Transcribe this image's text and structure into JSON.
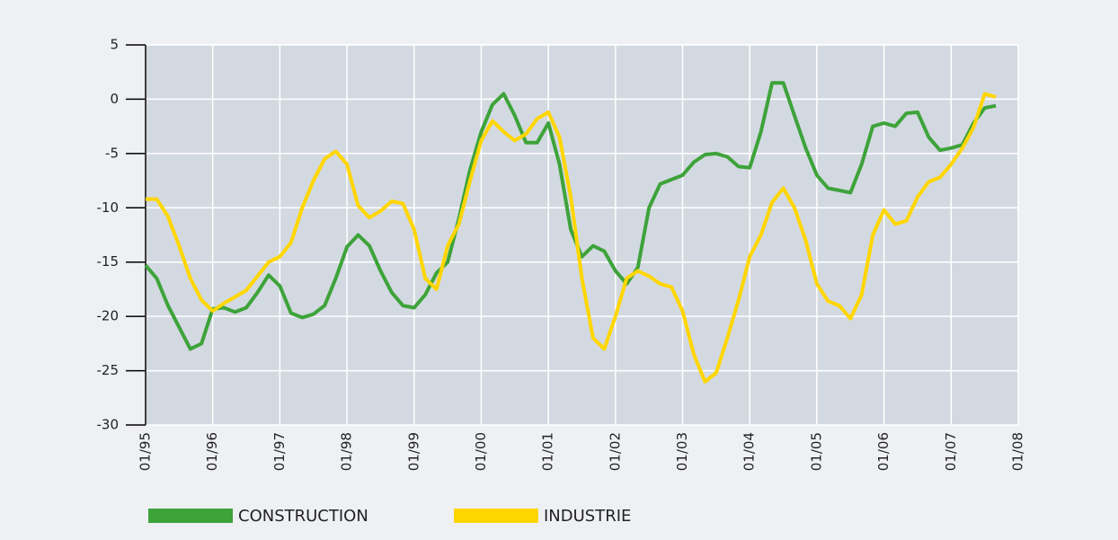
{
  "chart_data": {
    "type": "line",
    "x": [
      "1995-01",
      "1995-03",
      "1995-05",
      "1995-07",
      "1995-09",
      "1995-11",
      "1996-01",
      "1996-03",
      "1996-05",
      "1996-07",
      "1996-09",
      "1996-11",
      "1997-01",
      "1997-03",
      "1997-05",
      "1997-07",
      "1997-09",
      "1997-11",
      "1998-01",
      "1998-03",
      "1998-05",
      "1998-07",
      "1998-09",
      "1998-11",
      "1999-01",
      "1999-03",
      "1999-05",
      "1999-07",
      "1999-09",
      "1999-11",
      "2000-01",
      "2000-03",
      "2000-05",
      "2000-07",
      "2000-09",
      "2000-11",
      "2001-01",
      "2001-03",
      "2001-05",
      "2001-07",
      "2001-09",
      "2001-11",
      "2002-01",
      "2002-03",
      "2002-05",
      "2002-07",
      "2002-09",
      "2002-11",
      "2003-01",
      "2003-03",
      "2003-05",
      "2003-07",
      "2003-09",
      "2003-11",
      "2004-01",
      "2004-03",
      "2004-05",
      "2004-07",
      "2004-09",
      "2004-11",
      "2005-01",
      "2005-03",
      "2005-05",
      "2005-07",
      "2005-09",
      "2005-11",
      "2006-01",
      "2006-03",
      "2006-05",
      "2006-07",
      "2006-09",
      "2006-11",
      "2007-01",
      "2007-03",
      "2007-05",
      "2007-07",
      "2007-09"
    ],
    "series": [
      {
        "name": "CONSTRUCTION",
        "color": "#3da33a",
        "values": [
          -15.3,
          -16.5,
          -19,
          -21,
          -23,
          -22.5,
          -19.3,
          -19.2,
          -19.6,
          -19.2,
          -17.8,
          -16.2,
          -17.2,
          -19.7,
          -20.1,
          -19.8,
          -19,
          -16.5,
          -13.6,
          -12.5,
          -13.5,
          -15.8,
          -17.8,
          -19,
          -19.2,
          -18,
          -16,
          -15,
          -11,
          -6.5,
          -3,
          -0.5,
          0.5,
          -1.5,
          -4,
          -4,
          -2.2,
          -6,
          -12,
          -14.5,
          -13.5,
          -14,
          -15.8,
          -17,
          -15.5,
          -10,
          -7.8,
          -7.4,
          -7,
          -5.8,
          -5.1,
          -5,
          -5.3,
          -6.2,
          -6.3,
          -3,
          1.5,
          1.5,
          -1.5,
          -4.5,
          -7,
          -8.2,
          -8.4,
          -8.6,
          -6,
          -2.5,
          -2.2,
          -2.5,
          -1.3,
          -1.2,
          -3.5,
          -4.7,
          -4.5,
          -4.2,
          -2.2,
          -0.8,
          -0.6
        ]
      },
      {
        "name": "INDUSTRIE",
        "color": "#ffd600",
        "values": [
          -9.2,
          -9.2,
          -10.8,
          -13.5,
          -16.5,
          -18.5,
          -19.5,
          -18.8,
          -18.2,
          -17.6,
          -16.3,
          -15,
          -14.5,
          -13.2,
          -10,
          -7.5,
          -5.5,
          -4.8,
          -6,
          -9.8,
          -10.9,
          -10.3,
          -9.4,
          -9.6,
          -12,
          -16.5,
          -17.5,
          -13.5,
          -11.5,
          -7.5,
          -3.8,
          -2,
          -3,
          -3.8,
          -3.2,
          -1.8,
          -1.2,
          -3.5,
          -9,
          -16.5,
          -22,
          -23,
          -20,
          -16.5,
          -15.8,
          -16.3,
          -17,
          -17.3,
          -19.5,
          -23.5,
          -26,
          -25.2,
          -22,
          -18.5,
          -14.5,
          -12.5,
          -9.5,
          -8.2,
          -10,
          -13,
          -17,
          -18.6,
          -19,
          -20.2,
          -18,
          -12.5,
          -10.2,
          -11.5,
          -11.2,
          -9,
          -7.6,
          -7.2,
          -6,
          -4.5,
          -2.6,
          0.5,
          0.2
        ]
      }
    ],
    "xlim": [
      "1995-01",
      "2008-01"
    ],
    "xticks": [
      {
        "value": "1995-01",
        "label": "01/95"
      },
      {
        "value": "1996-01",
        "label": "01/96"
      },
      {
        "value": "1997-01",
        "label": "01/97"
      },
      {
        "value": "1998-01",
        "label": "01/98"
      },
      {
        "value": "1999-01",
        "label": "01/99"
      },
      {
        "value": "2000-01",
        "label": "01/00"
      },
      {
        "value": "2001-01",
        "label": "01/01"
      },
      {
        "value": "2002-01",
        "label": "01/02"
      },
      {
        "value": "2003-01",
        "label": "01/03"
      },
      {
        "value": "2004-01",
        "label": "01/04"
      },
      {
        "value": "2005-01",
        "label": "01/05"
      },
      {
        "value": "2006-01",
        "label": "01/06"
      },
      {
        "value": "2007-01",
        "label": "01/07"
      },
      {
        "value": "2008-01",
        "label": "01/08"
      }
    ],
    "ylim": [
      -30,
      5
    ],
    "yticks": [
      5,
      0,
      -5,
      -10,
      -15,
      -20,
      -25,
      -30
    ],
    "grid": true
  }
}
